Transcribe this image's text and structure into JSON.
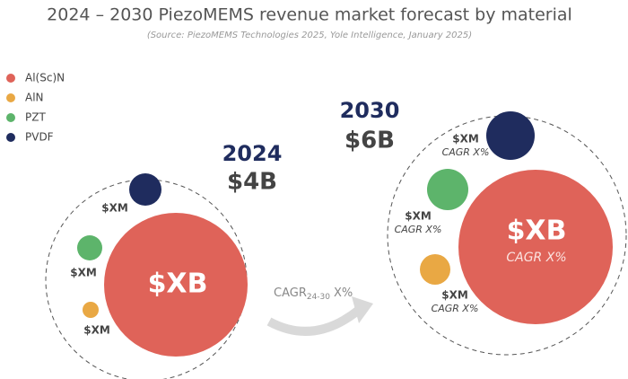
{
  "title": "2024 – 2030 PiezoMEMS revenue market forecast by material",
  "source": "(Source: PiezoMEMS Technologies 2025, Yole Intelligence, January 2025)",
  "legend": [
    {
      "label": "Al(Sc)N",
      "color": "#df6359"
    },
    {
      "label": "AlN",
      "color": "#e9a844"
    },
    {
      "label": "PZT",
      "color": "#5db46b"
    },
    {
      "label": "PVDF",
      "color": "#1f2c5e"
    }
  ],
  "groups": [
    {
      "year": "2024",
      "total": "$4B",
      "bubbles": [
        {
          "label": "$XB"
        },
        {
          "label": "$XM"
        },
        {
          "label": "$XM"
        },
        {
          "label": "$XM"
        }
      ]
    },
    {
      "year": "2030",
      "total": "$6B",
      "bubbles": [
        {
          "label": "$XB",
          "cagr": "CAGR X%"
        },
        {
          "label": "$XM",
          "cagr": "CAGR X%"
        },
        {
          "label": "$XM",
          "cagr": "CAGR X%"
        },
        {
          "label": "$XM",
          "cagr": "CAGR X%"
        }
      ]
    }
  ],
  "arrow": {
    "text": "CAGR",
    "subscript": "24-30",
    "suffix": "X%"
  }
}
